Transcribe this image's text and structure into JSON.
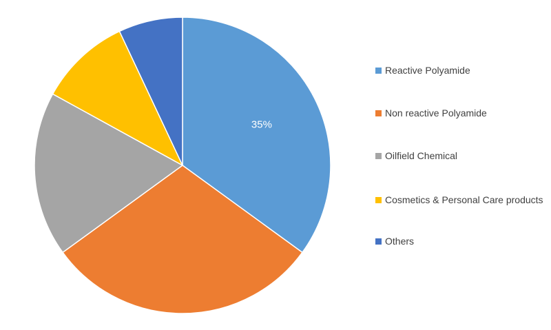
{
  "chart_data": {
    "type": "pie",
    "categories": [
      "Reactive Polyamide",
      "Non reactive Polyamide",
      "Oilfield Chemical",
      "Cosmetics & Personal Care products",
      "Others"
    ],
    "values": [
      35,
      30,
      18,
      10,
      7
    ],
    "value_labels": [
      "35%",
      null,
      null,
      null,
      null
    ],
    "colors": [
      "#5b9bd5",
      "#ed7d31",
      "#a5a5a5",
      "#ffc000",
      "#4472c4"
    ],
    "legend": "right"
  }
}
